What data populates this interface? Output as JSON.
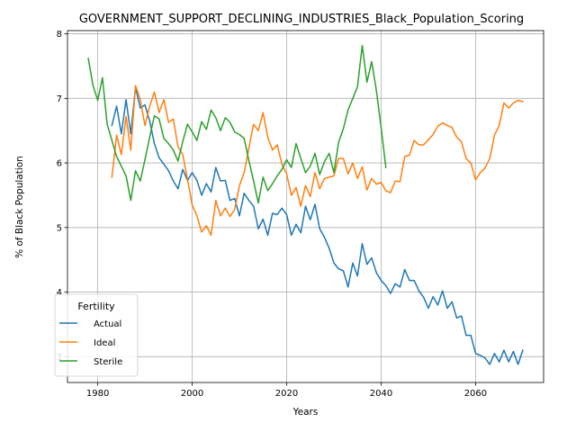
{
  "chart_data": {
    "type": "line",
    "title": "GOVERNMENT_SUPPORT_DECLINING_INDUSTRIES_Black_Population_Scoring",
    "xlabel": "Years",
    "ylabel": "% of Black Population",
    "xlim": [
      1973.6,
      2074.4
    ],
    "ylim": [
      2.6,
      8.05
    ],
    "xticks": [
      1980,
      2000,
      2020,
      2040,
      2060
    ],
    "yticks": [
      3,
      4,
      5,
      6,
      7,
      8
    ],
    "grid": true,
    "legend": {
      "title": "Fertility",
      "placement": "lower-left"
    },
    "series": [
      {
        "name": "Actual",
        "color": "#1f77b4",
        "x": [
          1983,
          1984,
          1985,
          1986,
          1987,
          1988,
          1989,
          1990,
          1991,
          1992,
          1993,
          1994,
          1995,
          1996,
          1997,
          1998,
          1999,
          2000,
          2001,
          2002,
          2003,
          2004,
          2005,
          2006,
          2007,
          2008,
          2009,
          2010,
          2011,
          2012,
          2013,
          2014,
          2015,
          2016,
          2017,
          2018,
          2019,
          2020,
          2021,
          2022,
          2023,
          2024,
          2025,
          2026,
          2027,
          2028,
          2029,
          2030,
          2031,
          2032,
          2033,
          2034,
          2035,
          2036,
          2037,
          2038,
          2039,
          2040,
          2041,
          2042,
          2043,
          2044,
          2045,
          2046,
          2047,
          2048,
          2049,
          2050,
          2051,
          2052,
          2053,
          2054,
          2055,
          2056,
          2057,
          2058,
          2059,
          2060,
          2061,
          2062,
          2063,
          2064,
          2065,
          2066,
          2067,
          2068,
          2069,
          2070
        ],
        "values": [
          6.58,
          6.88,
          6.45,
          6.98,
          6.45,
          7.17,
          6.85,
          6.9,
          6.65,
          6.3,
          6.08,
          5.98,
          5.88,
          5.72,
          5.6,
          5.9,
          5.73,
          5.85,
          5.73,
          5.5,
          5.68,
          5.55,
          5.93,
          5.72,
          5.73,
          5.42,
          5.45,
          5.18,
          5.53,
          5.42,
          5.33,
          4.98,
          5.13,
          4.88,
          5.22,
          5.2,
          5.3,
          5.2,
          4.88,
          5.05,
          4.92,
          5.33,
          5.12,
          5.36,
          4.98,
          4.85,
          4.68,
          4.45,
          4.36,
          4.33,
          4.08,
          4.45,
          4.25,
          4.75,
          4.43,
          4.53,
          4.3,
          4.18,
          4.1,
          3.98,
          4.13,
          4.08,
          4.35,
          4.18,
          4.18,
          4.02,
          3.92,
          3.75,
          3.93,
          3.8,
          4.02,
          3.75,
          3.85,
          3.6,
          3.63,
          3.33,
          3.33,
          3.05,
          3.02,
          2.98,
          2.88,
          3.05,
          2.92,
          3.1,
          2.92,
          3.08,
          2.88,
          3.1
        ]
      },
      {
        "name": "Ideal",
        "color": "#ff7f0e",
        "x": [
          1983,
          1984,
          1985,
          1986,
          1987,
          1988,
          1989,
          1990,
          1991,
          1992,
          1993,
          1994,
          1995,
          1996,
          1997,
          1998,
          1999,
          2000,
          2001,
          2002,
          2003,
          2004,
          2005,
          2006,
          2007,
          2008,
          2009,
          2010,
          2011,
          2012,
          2013,
          2014,
          2015,
          2016,
          2017,
          2018,
          2019,
          2020,
          2021,
          2022,
          2023,
          2024,
          2025,
          2026,
          2027,
          2028,
          2029,
          2030,
          2031,
          2032,
          2033,
          2034,
          2035,
          2036,
          2037,
          2038,
          2039,
          2040,
          2041,
          2042,
          2043,
          2044,
          2045,
          2046,
          2047,
          2048,
          2049,
          2050,
          2051,
          2052,
          2053,
          2054,
          2055,
          2056,
          2057,
          2058,
          2059,
          2060,
          2061,
          2062,
          2063,
          2064,
          2065,
          2066,
          2067,
          2068,
          2069,
          2070
        ],
        "values": [
          5.78,
          6.43,
          6.13,
          6.72,
          6.2,
          7.2,
          6.98,
          6.58,
          6.88,
          7.1,
          6.78,
          6.98,
          6.63,
          6.68,
          6.25,
          6.13,
          5.75,
          5.35,
          5.18,
          4.93,
          5.03,
          4.88,
          5.42,
          5.18,
          5.3,
          5.17,
          5.28,
          5.65,
          5.85,
          6.23,
          6.6,
          6.5,
          6.78,
          6.4,
          6.2,
          6.28,
          5.98,
          5.83,
          5.5,
          5.62,
          5.33,
          5.65,
          5.48,
          5.85,
          5.6,
          5.76,
          5.78,
          5.8,
          6.07,
          6.07,
          5.83,
          6.0,
          5.76,
          5.94,
          5.58,
          5.76,
          5.67,
          5.7,
          5.57,
          5.54,
          5.72,
          5.71,
          6.1,
          6.12,
          6.35,
          6.28,
          6.28,
          6.36,
          6.44,
          6.57,
          6.62,
          6.58,
          6.55,
          6.4,
          6.33,
          6.07,
          6.0,
          5.74,
          5.85,
          5.92,
          6.07,
          6.43,
          6.58,
          6.93,
          6.85,
          6.93,
          6.97,
          6.95
        ]
      },
      {
        "name": "Sterile",
        "color": "#2ca02c",
        "x": [
          1978,
          1979,
          1980,
          1981,
          1982,
          1983,
          1984,
          1985,
          1986,
          1987,
          1988,
          1989,
          1990,
          1991,
          1992,
          1993,
          1994,
          1995,
          1996,
          1997,
          1998,
          1999,
          2000,
          2001,
          2002,
          2003,
          2004,
          2005,
          2006,
          2007,
          2008,
          2009,
          2010,
          2011,
          2012,
          2013,
          2014,
          2015,
          2016,
          2017,
          2018,
          2019,
          2020,
          2021,
          2022,
          2023,
          2024,
          2025,
          2026,
          2027,
          2028,
          2029,
          2030,
          2031,
          2032,
          2033,
          2034,
          2035,
          2036,
          2037,
          2038,
          2039,
          2040,
          2041
        ],
        "values": [
          7.62,
          7.2,
          6.97,
          7.32,
          6.6,
          6.35,
          6.1,
          5.95,
          5.8,
          5.42,
          5.88,
          5.72,
          6.05,
          6.4,
          6.73,
          6.68,
          6.38,
          6.3,
          6.2,
          6.03,
          6.33,
          6.6,
          6.48,
          6.35,
          6.64,
          6.52,
          6.82,
          6.7,
          6.5,
          6.7,
          6.63,
          6.48,
          6.44,
          6.38,
          6.04,
          5.72,
          5.38,
          5.78,
          5.57,
          5.68,
          5.8,
          5.9,
          6.05,
          5.93,
          6.3,
          6.07,
          5.85,
          5.95,
          6.15,
          5.82,
          6.02,
          6.15,
          5.85,
          6.32,
          6.53,
          6.82,
          7.0,
          7.18,
          7.82,
          7.25,
          7.57,
          7.12,
          6.55,
          5.93
        ]
      }
    ]
  }
}
